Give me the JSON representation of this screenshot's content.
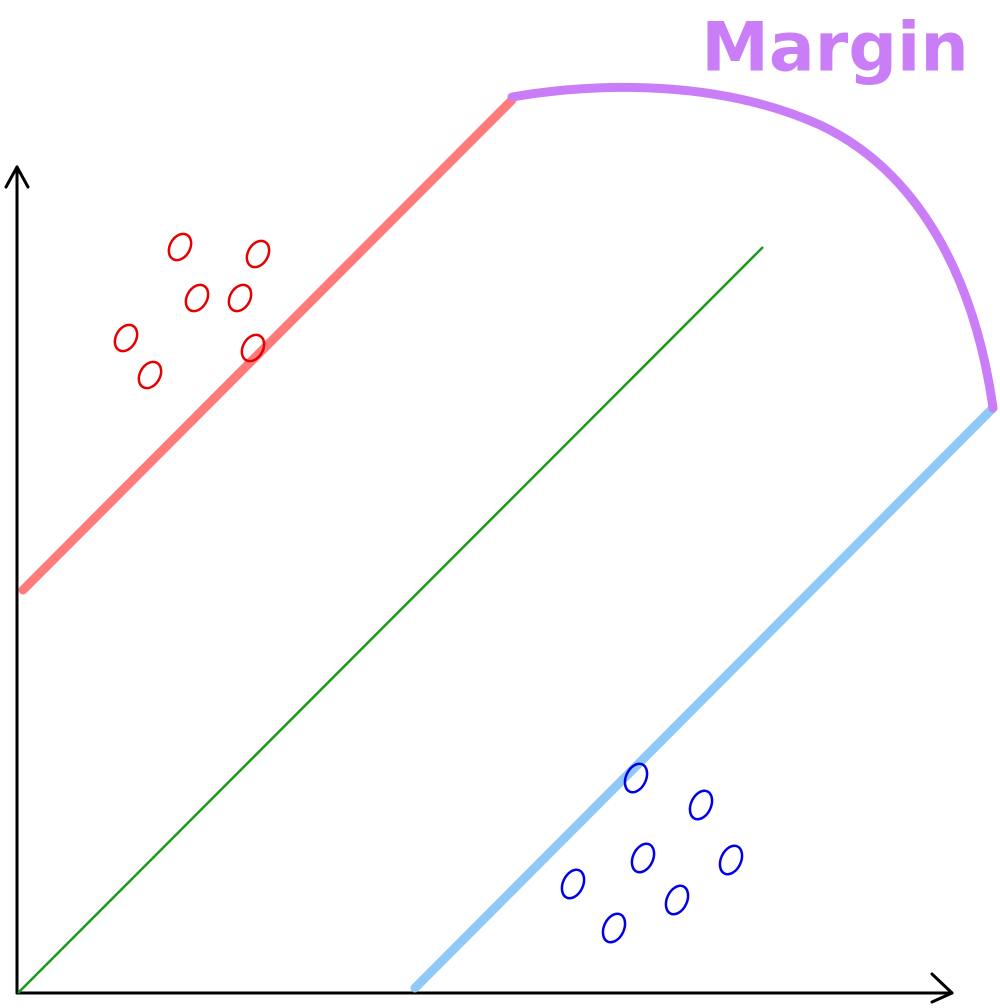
{
  "annotation": "Margin"
}
